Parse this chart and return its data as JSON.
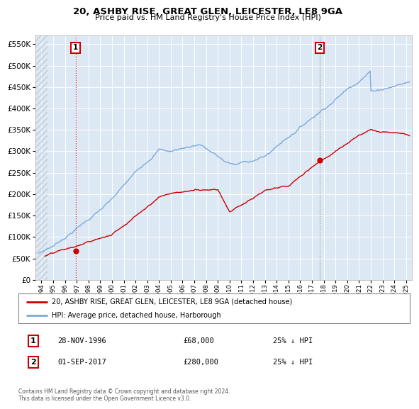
{
  "title": "20, ASHBY RISE, GREAT GLEN, LEICESTER, LE8 9GA",
  "subtitle": "Price paid vs. HM Land Registry's House Price Index (HPI)",
  "legend_entry1": "20, ASHBY RISE, GREAT GLEN, LEICESTER, LE8 9GA (detached house)",
  "legend_entry2": "HPI: Average price, detached house, Harborough",
  "footer": "Contains HM Land Registry data © Crown copyright and database right 2024.\nThis data is licensed under the Open Government Licence v3.0.",
  "sale1_date_year": 1996.91,
  "sale1_price": 68000,
  "sale2_date_year": 2017.67,
  "sale2_price": 280000,
  "red_color": "#cc0000",
  "blue_color": "#7aabdc",
  "background_color": "#ffffff",
  "plot_bg_color": "#dde8f5",
  "grid_color": "#ffffff",
  "ylim_min": 0,
  "ylim_max": 570000,
  "xlim_min": 1993.5,
  "xlim_max": 2025.5,
  "ann1_date": "28-NOV-1996",
  "ann1_price": "£68,000",
  "ann1_hpi": "25% ↓ HPI",
  "ann2_date": "01-SEP-2017",
  "ann2_price": "£280,000",
  "ann2_hpi": "25% ↓ HPI"
}
